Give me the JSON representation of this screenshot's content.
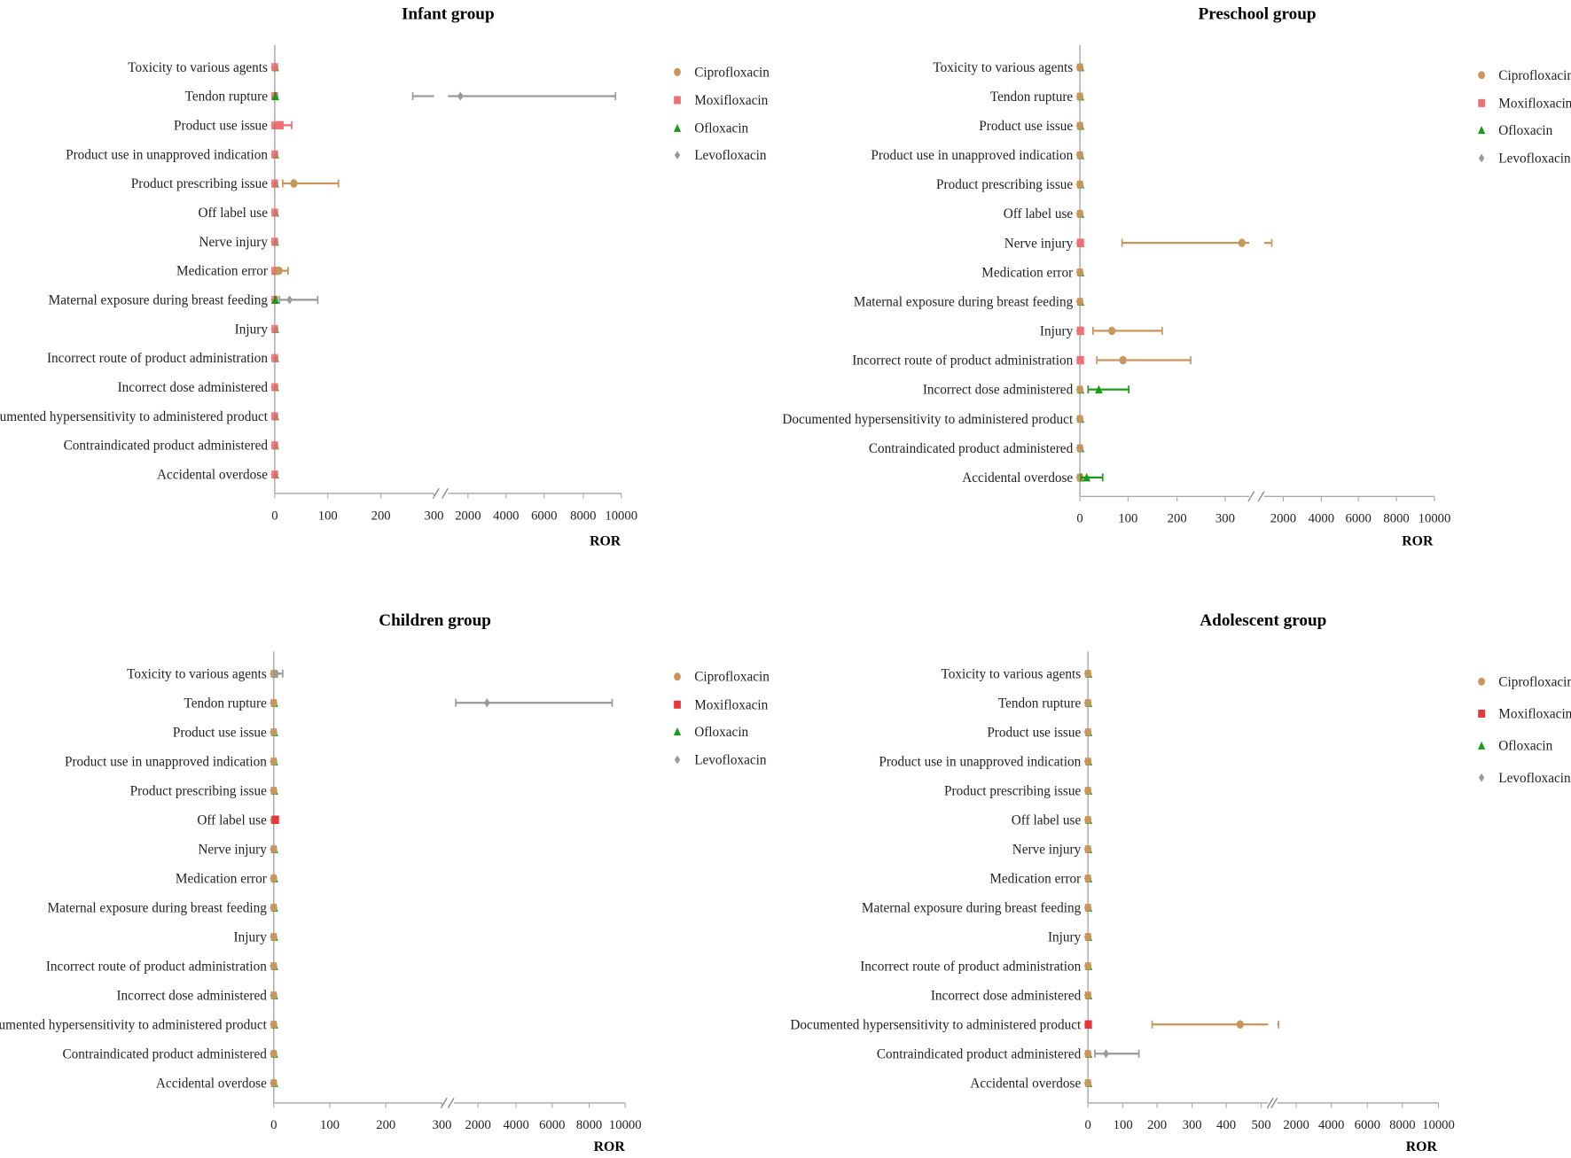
{
  "colors": {
    "Ciprofloxacin": "#c8955a",
    "Moxifloxacin": "#ef6f74",
    "Moxifloxacin_dark": "#e8343b",
    "Ofloxacin": "#1a9a1a",
    "Levofloxacin": "#9a9a9a",
    "axis": "#aaaaaa"
  },
  "chart_data": [
    {
      "type": "forest",
      "title": "Infant group",
      "xlabel": "ROR",
      "categories": [
        "Toxicity to various agents",
        "Tendon rupture",
        "Product use issue",
        "Product use in unapproved indication",
        "Product prescribing issue",
        "Off label use",
        "Nerve injury",
        "Medication error",
        "Maternal exposure during breast feeding",
        "Injury",
        "Incorrect route of product administration",
        "Incorrect dose administered",
        "Documented hypersensitivity to administered product",
        "Contraindicated product administered",
        "Accidental overdose"
      ],
      "axis_segments": [
        [
          0,
          300
        ],
        [
          950,
          10000
        ]
      ],
      "ticks_left": [
        "0",
        "100",
        "200",
        "300"
      ],
      "ticks_right": [
        "2000",
        "4000",
        "6000",
        "8000",
        "10000"
      ],
      "legend": [
        "Ciprofloxacin",
        "Moxifloxacin",
        "Ofloxacin",
        "Levofloxacin"
      ],
      "baseline_color": "#ef6f74",
      "points": [
        {
          "drug": "Levofloxacin",
          "category": "Tendon rupture",
          "ror": 1600,
          "lo": 260,
          "hi": 9700
        },
        {
          "drug": "Ofloxacin",
          "category": "Tendon rupture",
          "ror": 1,
          "lo": 0,
          "hi": 2
        },
        {
          "drug": "Moxifloxacin",
          "category": "Product use issue",
          "ror": 10,
          "lo": 3,
          "hi": 32
        },
        {
          "drug": "Ciprofloxacin",
          "category": "Product prescribing issue",
          "ror": 36,
          "lo": 15,
          "hi": 120
        },
        {
          "drug": "Ciprofloxacin",
          "category": "Medication error",
          "ror": 8,
          "lo": 3,
          "hi": 25
        },
        {
          "drug": "Levofloxacin",
          "category": "Maternal exposure during breast feeding",
          "ror": 28,
          "lo": 9,
          "hi": 81
        },
        {
          "drug": "Ofloxacin",
          "category": "Maternal exposure during breast feeding",
          "ror": 1,
          "lo": 0,
          "hi": 2
        }
      ]
    },
    {
      "type": "forest",
      "title": "Preschool group",
      "xlabel": "ROR",
      "categories": [
        "Toxicity to various agents",
        "Tendon rupture",
        "Product use issue",
        "Product use in unapproved indication",
        "Product prescribing issue",
        "Off label use",
        "Nerve injury",
        "Medication error",
        "Maternal exposure during breast feeding",
        "Injury",
        "Incorrect route of product administration",
        "Incorrect dose administered",
        "Documented hypersensitivity to administered product",
        "Contraindicated product administered",
        "Accidental overdose"
      ],
      "axis_segments": [
        [
          0,
          350
        ],
        [
          1000,
          10000
        ]
      ],
      "ticks_left": [
        "0",
        "100",
        "200",
        "300"
      ],
      "ticks_right": [
        "2000",
        "4000",
        "6000",
        "8000",
        "10000"
      ],
      "legend": [
        "Ciprofloxacin",
        "Moxifloxacin",
        "Ofloxacin",
        "Levofloxacin"
      ],
      "baseline_color": "#c8955a",
      "points": [
        {
          "drug": "Moxifloxacin",
          "category": "Nerve injury",
          "ror": 1,
          "lo": 0,
          "hi": 2
        },
        {
          "drug": "Ciprofloxacin",
          "category": "Nerve injury",
          "ror": 335,
          "lo": 87,
          "hi": 1400
        },
        {
          "drug": "Moxifloxacin",
          "category": "Injury",
          "ror": 1,
          "lo": 0,
          "hi": 2
        },
        {
          "drug": "Ciprofloxacin",
          "category": "Injury",
          "ror": 66,
          "lo": 27,
          "hi": 170
        },
        {
          "drug": "Moxifloxacin",
          "category": "Incorrect route of product administration",
          "ror": 1,
          "lo": 0,
          "hi": 2
        },
        {
          "drug": "Ciprofloxacin",
          "category": "Incorrect route of product administration",
          "ror": 89,
          "lo": 35,
          "hi": 229
        },
        {
          "drug": "Ofloxacin",
          "category": "Incorrect dose administered",
          "ror": 39,
          "lo": 17,
          "hi": 101
        },
        {
          "drug": "Ofloxacin",
          "category": "Accidental overdose",
          "ror": 14,
          "lo": 2,
          "hi": 47
        }
      ]
    },
    {
      "type": "forest",
      "title": "Children group",
      "xlabel": "ROR",
      "categories": [
        "Toxicity to various agents",
        "Tendon rupture",
        "Product use issue",
        "Product use in unapproved indication",
        "Product prescribing issue",
        "Off label use",
        "Nerve injury",
        "Medication error",
        "Maternal exposure during breast feeding",
        "Injury",
        "Incorrect route of product administration",
        "Incorrect dose administered",
        "Documented hypersensitivity to administered product",
        "Contraindicated product administered",
        "Accidental overdose"
      ],
      "axis_segments": [
        [
          0,
          300
        ],
        [
          700,
          10000
        ]
      ],
      "ticks_left": [
        "0",
        "100",
        "200",
        "300"
      ],
      "ticks_right": [
        "2000",
        "4000",
        "6000",
        "8000",
        "10000"
      ],
      "legend": [
        "Ciprofloxacin",
        "Moxifloxacin",
        "Ofloxacin",
        "Levofloxacin"
      ],
      "baseline_color": "#c8955a",
      "points": [
        {
          "drug": "Levofloxacin",
          "category": "Toxicity to various agents",
          "ror": 5,
          "lo": 1,
          "hi": 16
        },
        {
          "drug": "Levofloxacin",
          "category": "Tendon rupture",
          "ror": 2490,
          "lo": 800,
          "hi": 9290
        },
        {
          "drug": "Moxifloxacin",
          "category": "Off label use",
          "ror": 3,
          "lo": 1,
          "hi": 5
        }
      ]
    },
    {
      "type": "forest",
      "title": "Adolescent group",
      "xlabel": "ROR",
      "categories": [
        "Toxicity to various agents",
        "Tendon rupture",
        "Product use issue",
        "Product use in unapproved indication",
        "Product prescribing issue",
        "Off label use",
        "Nerve injury",
        "Medication error",
        "Maternal exposure during breast feeding",
        "Injury",
        "Incorrect route of product administration",
        "Incorrect dose administered",
        "Documented hypersensitivity to administered product",
        "Contraindicated product administered",
        "Accidental overdose"
      ],
      "axis_segments": [
        [
          0,
          520
        ],
        [
          930,
          10000
        ]
      ],
      "ticks_left": [
        "0",
        "100",
        "200",
        "300",
        "400",
        "500"
      ],
      "ticks_right": [
        "2000",
        "4000",
        "6000",
        "8000",
        "10000"
      ],
      "legend": [
        "Ciprofloxacin",
        "Moxifloxacin",
        "Ofloxacin",
        "Levofloxacin"
      ],
      "baseline_color": "#c8955a",
      "points": [
        {
          "drug": "Moxifloxacin",
          "category": "Documented hypersensitivity to administered product",
          "ror": 1,
          "lo": 0,
          "hi": 2
        },
        {
          "drug": "Ciprofloxacin",
          "category": "Documented hypersensitivity to administered product",
          "ror": 439,
          "lo": 185,
          "hi": 1000
        },
        {
          "drug": "Levofloxacin",
          "category": "Contraindicated product administered",
          "ror": 52,
          "lo": 20,
          "hi": 147
        }
      ]
    }
  ]
}
